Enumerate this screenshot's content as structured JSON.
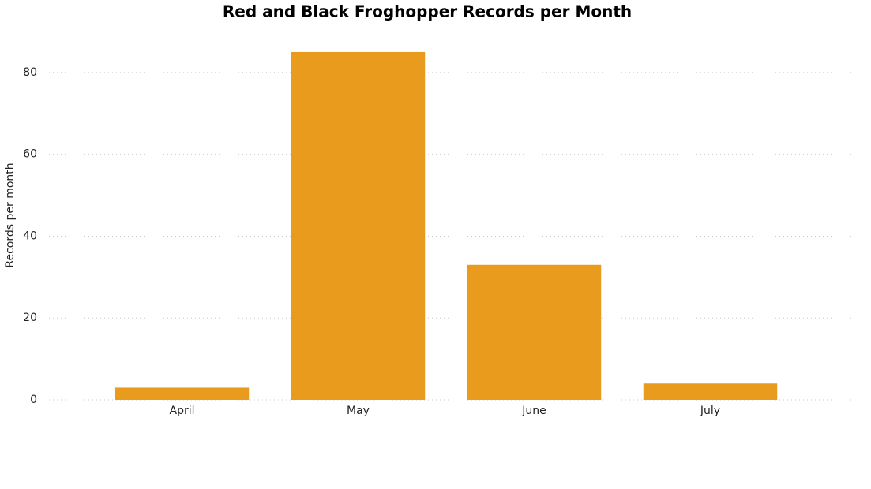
{
  "chart_data": {
    "type": "bar",
    "title": "Red and Black Froghopper Records per Month",
    "y_label": "Records per month",
    "categories": [
      "April",
      "May",
      "June",
      "July"
    ],
    "values": [
      3,
      85,
      33,
      4
    ],
    "color": "#e99b1e",
    "ylim": [
      0,
      90
    ],
    "yticks": [
      0,
      20,
      40,
      60,
      80
    ],
    "grid": true
  }
}
